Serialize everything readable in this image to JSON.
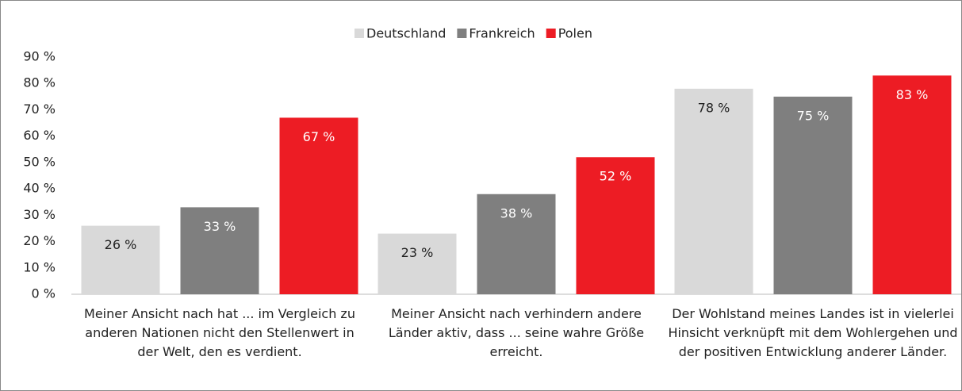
{
  "chart_data": {
    "type": "bar",
    "categories": [
      "Meiner Ansicht nach hat  ...  im Vergleich zu anderen Nationen nicht den Stellenwert in der Welt, den es verdient.",
      "Meiner Ansicht nach verhindern andere Länder aktiv, dass  ...  seine wahre Größe erreicht.",
      "Der Wohlstand meines Landes ist in vielerlei Hinsicht verknüpft mit dem Wohlergehen und der positiven Entwicklung anderer Länder."
    ],
    "series": [
      {
        "name": "Deutschland",
        "color": "#d9d9d9",
        "label_color": "#222222",
        "values": [
          26,
          23,
          78
        ],
        "value_labels": [
          "26 %",
          "23 %",
          "78 %"
        ]
      },
      {
        "name": "Frankreich",
        "color": "#7f7f7f",
        "label_color": "#ffffff",
        "values": [
          33,
          38,
          75
        ],
        "value_labels": [
          "33 %",
          "38 %",
          "75 %"
        ]
      },
      {
        "name": "Polen",
        "color": "#ed1c24",
        "label_color": "#ffffff",
        "values": [
          67,
          52,
          83
        ],
        "value_labels": [
          "67 %",
          "52 %",
          "83 %"
        ]
      }
    ],
    "ylim": [
      0,
      90
    ],
    "yticks": [
      {
        "value": 0,
        "label": "0 %"
      },
      {
        "value": 10,
        "label": "10 %"
      },
      {
        "value": 20,
        "label": "20 %"
      },
      {
        "value": 30,
        "label": "30 %"
      },
      {
        "value": 40,
        "label": "40 %"
      },
      {
        "value": 50,
        "label": "50 %"
      },
      {
        "value": 60,
        "label": "60 %"
      },
      {
        "value": 70,
        "label": "70 %"
      },
      {
        "value": 80,
        "label": "80 %"
      },
      {
        "value": 90,
        "label": "90 %"
      }
    ],
    "grid": false,
    "legend": "top"
  }
}
